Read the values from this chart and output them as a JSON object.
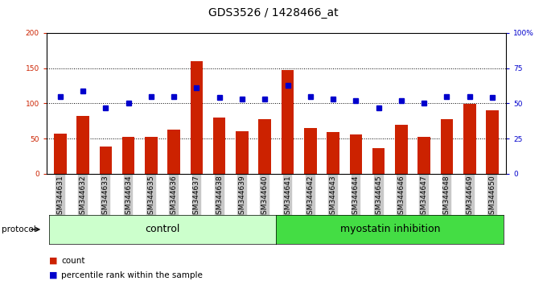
{
  "title": "GDS3526 / 1428466_at",
  "samples": [
    "GSM344631",
    "GSM344632",
    "GSM344633",
    "GSM344634",
    "GSM344635",
    "GSM344636",
    "GSM344637",
    "GSM344638",
    "GSM344639",
    "GSM344640",
    "GSM344641",
    "GSM344642",
    "GSM344643",
    "GSM344644",
    "GSM344645",
    "GSM344646",
    "GSM344647",
    "GSM344648",
    "GSM344649",
    "GSM344650"
  ],
  "bar_values": [
    57,
    82,
    39,
    52,
    52,
    63,
    160,
    80,
    60,
    78,
    147,
    65,
    59,
    56,
    37,
    70,
    52,
    78,
    99,
    90
  ],
  "dot_values": [
    55,
    59,
    47,
    50,
    55,
    55,
    61,
    54,
    53,
    53,
    63,
    55,
    53,
    52,
    47,
    52,
    50,
    55,
    55,
    54
  ],
  "bar_color": "#cc2200",
  "dot_color": "#0000cc",
  "left_ylim": [
    0,
    200
  ],
  "right_ylim": [
    0,
    100
  ],
  "left_yticks": [
    0,
    50,
    100,
    150,
    200
  ],
  "right_yticks": [
    0,
    25,
    50,
    75,
    100
  ],
  "right_yticklabels": [
    "0",
    "25",
    "50",
    "75",
    "100%"
  ],
  "gridlines": [
    50,
    100,
    150
  ],
  "group1_label": "control",
  "group2_label": "myostatin inhibition",
  "group1_count": 10,
  "group2_count": 10,
  "protocol_label": "protocol",
  "legend_bar_label": "count",
  "legend_dot_label": "percentile rank within the sample",
  "bg_plot": "#ffffff",
  "bg_xticklabel": "#c8c8c8",
  "bg_group1": "#ccffcc",
  "bg_group2": "#44dd44",
  "title_fontsize": 10,
  "tick_fontsize": 6.5,
  "axis_label_fontsize": 7,
  "group_fontsize": 9,
  "legend_fontsize": 7.5
}
